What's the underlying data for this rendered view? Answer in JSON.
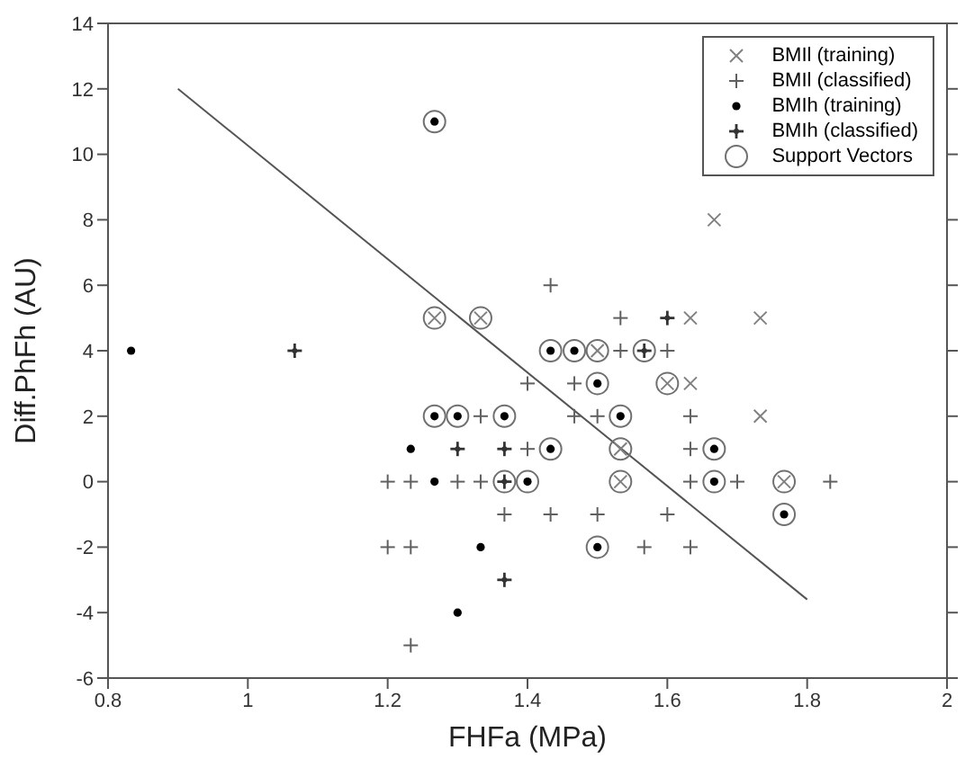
{
  "chart_data": {
    "type": "scatter",
    "xlabel": "FHFa (MPa)",
    "ylabel": "Diff.PhFh (AU)",
    "xlim": [
      0.8,
      2
    ],
    "xticks": [
      0.8,
      1,
      1.2,
      1.4,
      1.6,
      1.8,
      2
    ],
    "ylim": [
      -6,
      14
    ],
    "yticks": [
      -6,
      -4,
      -2,
      0,
      2,
      4,
      6,
      8,
      10,
      12,
      14
    ],
    "grid": false,
    "legend": "top right",
    "series": [
      {
        "type": "line",
        "color": "#555555",
        "x": [
          0.9,
          1.8
        ],
        "values": [
          12,
          -3.6
        ],
        "marker": "none",
        "line_style": "solid"
      },
      {
        "name": "BMIl (training)",
        "color": "#808080",
        "marker": "x",
        "x": [
          1.667,
          1.733,
          1.633,
          1.267,
          1.333,
          1.5,
          1.6,
          1.633,
          1.733,
          1.533,
          1.533,
          1.767
        ],
        "values": [
          8,
          5,
          5,
          5,
          5,
          4,
          3,
          3,
          2,
          1,
          0,
          0
        ]
      },
      {
        "name": "BMIl (classified)",
        "color": "#606060",
        "marker": "plus",
        "x": [
          1.433,
          1.533,
          1.533,
          1.6,
          1.4,
          1.467,
          1.333,
          1.467,
          1.5,
          1.633,
          1.4,
          1.633,
          1.2,
          1.233,
          1.3,
          1.333,
          1.633,
          1.7,
          1.833,
          1.367,
          1.433,
          1.5,
          1.6,
          1.2,
          1.233,
          1.567,
          1.633,
          1.233
        ],
        "values": [
          6,
          5,
          4,
          4,
          3,
          3,
          2,
          2,
          2,
          2,
          1,
          1,
          0,
          0,
          0,
          0,
          0,
          0,
          0,
          -1,
          -1,
          -1,
          -1,
          -2,
          -2,
          -2,
          -2,
          -5
        ]
      },
      {
        "name": "BMIh (training)",
        "color": "#000000",
        "marker": "dot",
        "x": [
          1.267,
          1.433,
          1.467,
          1.5,
          1.267,
          1.3,
          1.367,
          1.533,
          1.433,
          1.667,
          1.4,
          1.667,
          1.767,
          1.5,
          0.833,
          1.233,
          1.267,
          1.333,
          1.3
        ],
        "values": [
          11,
          4,
          4,
          3,
          2,
          2,
          2,
          2,
          1,
          1,
          0,
          0,
          -1,
          -2,
          4,
          1,
          0,
          -2,
          -4
        ]
      },
      {
        "name": "BMIh (classified)",
        "color": "#333333",
        "marker": "cross",
        "x": [
          1.067,
          1.6,
          1.567,
          1.3,
          1.367,
          1.367,
          1.367
        ],
        "values": [
          4,
          5,
          4,
          1,
          1,
          0,
          -3
        ]
      },
      {
        "name": "Support Vectors",
        "color": "#707070",
        "marker": "circle",
        "x": [
          1.267,
          1.267,
          1.333,
          1.433,
          1.467,
          1.5,
          1.567,
          1.5,
          1.6,
          1.267,
          1.3,
          1.367,
          1.533,
          1.433,
          1.533,
          1.667,
          1.367,
          1.4,
          1.533,
          1.667,
          1.767,
          1.767,
          1.5
        ],
        "values": [
          11,
          5,
          5,
          4,
          4,
          4,
          4,
          3,
          3,
          2,
          2,
          2,
          2,
          1,
          1,
          1,
          0,
          0,
          0,
          0,
          0,
          -1,
          -2
        ]
      }
    ]
  }
}
